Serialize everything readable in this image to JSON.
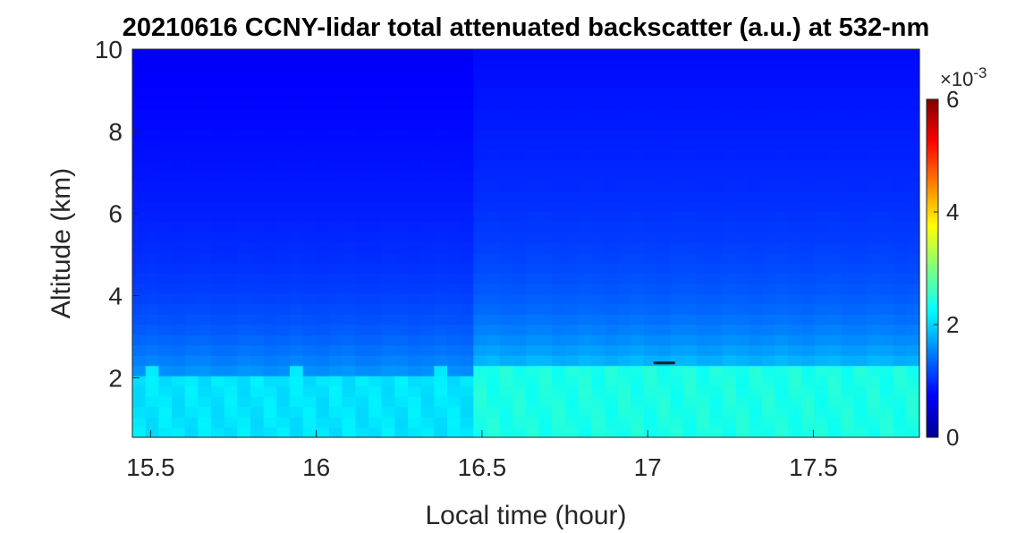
{
  "chart_data": {
    "type": "heatmap",
    "title": "20210616 CCNY-lidar total attenuated backscatter (a.u.) at 532-nm",
    "xlabel": "Local time (hour)",
    "ylabel": "Altitude (km)",
    "xlim": [
      15.445,
      17.82
    ],
    "ylim": [
      0.55,
      10
    ],
    "x_ticks": [
      15.5,
      16,
      16.5,
      17,
      17.5
    ],
    "x_tick_labels": [
      "15.5",
      "16",
      "16.5",
      "17",
      "17.5"
    ],
    "y_ticks": [
      2,
      4,
      6,
      8,
      10
    ],
    "y_tick_labels": [
      "2",
      "4",
      "6",
      "8",
      "10"
    ],
    "colormap": "jet",
    "colorbar": {
      "range": [
        0,
        0.006
      ],
      "ticks": [
        0,
        2,
        4,
        6
      ],
      "tick_labels": [
        "0",
        "2",
        "4",
        "6"
      ],
      "multiplier_base": "×10",
      "multiplier_exp": "-3"
    },
    "regions": [
      {
        "time_range": [
          15.445,
          16.48
        ],
        "boundary_layer_top_km": 2.1,
        "value_in_bl": 0.0021,
        "value_above_bl": 0.0011
      },
      {
        "time_range": [
          16.48,
          17.82
        ],
        "boundary_layer_top_km": 2.3,
        "value_in_bl": 0.0024,
        "value_above_bl": 0.0012
      }
    ],
    "features": [
      {
        "type": "small dark segments",
        "time": 17.05,
        "altitude_km": 2.35
      }
    ]
  }
}
